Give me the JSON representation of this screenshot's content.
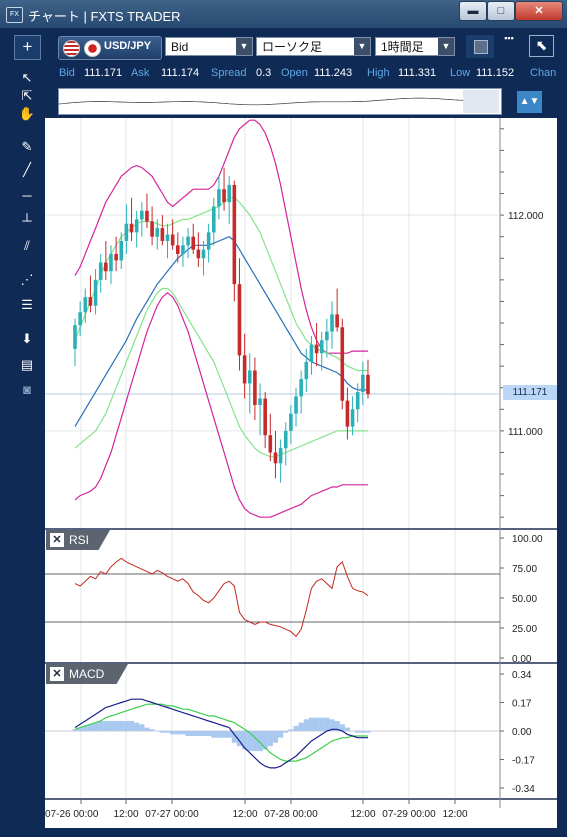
{
  "window": {
    "title": "チャート | FXTS TRADER",
    "icon_text": "FX",
    "minimize": "▬",
    "maximize": "□",
    "close": "✕"
  },
  "toolbar": {
    "add_label": "+",
    "symbol": "USD/JPY",
    "price_type": "Bid",
    "chart_type": "ローソク足",
    "timeframe": "1時間足",
    "scroll_icon": "▪▪▪",
    "expand_icon": "⬉"
  },
  "quote": {
    "bid_label": "Bid",
    "bid": "111.171",
    "ask_label": "Ask",
    "ask": "111.174",
    "spread_label": "Spread",
    "spread": "0.3",
    "open_label": "Open",
    "open": "111.243",
    "high_label": "High",
    "high": "111.331",
    "low_label": "Low",
    "low": "111.152",
    "change_label": "Chan"
  },
  "current_price_tag": "111.171",
  "colors": {
    "bollinger_outer": "#d4249b",
    "bollinger_inner": "#86e38a",
    "moving_average": "#2a6fb8",
    "candle_up": "#2bb0b8",
    "candle_down": "#c62a2a",
    "rsi_line": "#c0281f",
    "macd_line": "#1a1f8c",
    "signal_line": "#3ccf4c",
    "histogram": "#a9c9f0"
  },
  "rsi_panel": {
    "label": "RSI",
    "close_icon": "✕"
  },
  "macd_panel": {
    "label": "MACD",
    "close_icon": "✕"
  },
  "chart_data": [
    {
      "type": "candlestick",
      "series": [
        {
          "name": "",
          "values_desc": []
        }
      ],
      "y_ticks": [
        "112.000",
        "111.000"
      ],
      "ylim": [
        110.55,
        112.45
      ],
      "x_ticks": [
        "07-26 00:00",
        "12:00",
        "07-27 00:00",
        "12:00",
        "07-28 00:00",
        "12:00",
        "07-29 00:00",
        "12:00"
      ],
      "candles": [
        [
          111.38,
          111.52,
          111.3,
          111.49
        ],
        [
          111.49,
          111.6,
          111.44,
          111.55
        ],
        [
          111.55,
          111.66,
          111.5,
          111.62
        ],
        [
          111.62,
          111.72,
          111.55,
          111.58
        ],
        [
          111.58,
          111.75,
          111.54,
          111.7
        ],
        [
          111.7,
          111.82,
          111.64,
          111.78
        ],
        [
          111.78,
          111.88,
          111.7,
          111.74
        ],
        [
          111.74,
          111.86,
          111.68,
          111.82
        ],
        [
          111.82,
          111.9,
          111.74,
          111.79
        ],
        [
          111.79,
          111.92,
          111.75,
          111.88
        ],
        [
          111.88,
          112.05,
          111.82,
          111.96
        ],
        [
          111.96,
          112.08,
          111.88,
          111.92
        ],
        [
          111.92,
          112.02,
          111.85,
          111.98
        ],
        [
          111.98,
          112.06,
          111.9,
          112.02
        ],
        [
          112.02,
          112.1,
          111.94,
          111.97
        ],
        [
          111.97,
          112.04,
          111.86,
          111.9
        ],
        [
          111.9,
          111.98,
          111.84,
          111.94
        ],
        [
          111.94,
          112.0,
          111.86,
          111.88
        ],
        [
          111.88,
          111.96,
          111.8,
          111.91
        ],
        [
          111.91,
          111.98,
          111.84,
          111.86
        ],
        [
          111.86,
          111.92,
          111.78,
          111.82
        ],
        [
          111.82,
          111.9,
          111.76,
          111.86
        ],
        [
          111.86,
          111.94,
          111.8,
          111.9
        ],
        [
          111.9,
          111.96,
          111.82,
          111.84
        ],
        [
          111.84,
          111.92,
          111.76,
          111.8
        ],
        [
          111.8,
          111.88,
          111.72,
          111.84
        ],
        [
          111.84,
          111.96,
          111.78,
          111.92
        ],
        [
          111.92,
          112.08,
          111.86,
          112.04
        ],
        [
          112.04,
          112.18,
          111.98,
          112.12
        ],
        [
          112.12,
          112.22,
          112.02,
          112.06
        ],
        [
          112.06,
          112.18,
          111.96,
          112.14
        ],
        [
          112.14,
          112.16,
          111.6,
          111.68
        ],
        [
          111.68,
          111.8,
          111.28,
          111.35
        ],
        [
          111.35,
          111.45,
          111.15,
          111.22
        ],
        [
          111.22,
          111.36,
          111.08,
          111.28
        ],
        [
          111.28,
          111.34,
          111.05,
          111.12
        ],
        [
          111.12,
          111.22,
          110.98,
          111.15
        ],
        [
          111.15,
          111.18,
          110.92,
          110.98
        ],
        [
          110.98,
          111.08,
          110.86,
          110.9
        ],
        [
          110.9,
          111.0,
          110.78,
          110.85
        ],
        [
          110.85,
          110.96,
          110.76,
          110.92
        ],
        [
          110.92,
          111.04,
          110.84,
          111.0
        ],
        [
          111.0,
          111.12,
          110.94,
          111.08
        ],
        [
          111.08,
          111.2,
          111.02,
          111.16
        ],
        [
          111.16,
          111.28,
          111.08,
          111.24
        ],
        [
          111.24,
          111.38,
          111.18,
          111.32
        ],
        [
          111.32,
          111.44,
          111.26,
          111.4
        ],
        [
          111.4,
          111.5,
          111.3,
          111.36
        ],
        [
          111.36,
          111.46,
          111.28,
          111.42
        ],
        [
          111.42,
          111.52,
          111.34,
          111.46
        ],
        [
          111.46,
          111.6,
          111.38,
          111.54
        ],
        [
          111.54,
          111.66,
          111.46,
          111.48
        ],
        [
          111.48,
          111.52,
          111.1,
          111.14
        ],
        [
          111.14,
          111.2,
          110.96,
          111.02
        ],
        [
          111.02,
          111.16,
          110.98,
          111.1
        ],
        [
          111.1,
          111.22,
          111.04,
          111.18
        ],
        [
          111.18,
          111.32,
          111.12,
          111.26
        ],
        [
          111.26,
          111.33,
          111.15,
          111.17
        ]
      ],
      "ma": [
        111.02,
        111.06,
        111.1,
        111.14,
        111.18,
        111.22,
        111.26,
        111.3,
        111.34,
        111.38,
        111.42,
        111.47,
        111.52,
        111.56,
        111.6,
        111.64,
        111.68,
        111.71,
        111.74,
        111.77,
        111.8,
        111.82,
        111.84,
        111.86,
        111.86,
        111.86,
        111.86,
        111.87,
        111.88,
        111.89,
        111.9,
        111.88,
        111.84,
        111.8,
        111.76,
        111.72,
        111.68,
        111.64,
        111.6,
        111.56,
        111.52,
        111.48,
        111.44,
        111.4,
        111.36,
        111.34,
        111.32,
        111.31,
        111.3,
        111.29,
        111.28,
        111.27,
        111.25,
        111.22,
        111.2,
        111.19,
        111.19,
        111.19
      ],
      "bb_upper": [
        111.72,
        111.76,
        111.82,
        111.88,
        111.94,
        112.0,
        112.06,
        112.1,
        112.14,
        112.18,
        112.2,
        112.22,
        112.23,
        112.22,
        112.2,
        112.18,
        112.14,
        112.1,
        112.06,
        112.04,
        112.06,
        112.08,
        112.1,
        112.12,
        112.12,
        112.12,
        112.12,
        112.14,
        112.18,
        112.24,
        112.3,
        112.36,
        112.4,
        112.42,
        112.44,
        112.44,
        112.42,
        112.38,
        112.32,
        112.24,
        112.14,
        112.02,
        111.9,
        111.78,
        111.66,
        111.56,
        111.48,
        111.42,
        111.38,
        111.36,
        111.36,
        111.36,
        111.36,
        111.36,
        111.37,
        111.37,
        111.37,
        111.37
      ],
      "bb_inner_upper": [
        111.42,
        111.48,
        111.54,
        111.6,
        111.66,
        111.72,
        111.78,
        111.82,
        111.86,
        111.9,
        111.92,
        111.94,
        111.96,
        111.97,
        111.97,
        111.97,
        111.96,
        111.95,
        111.95,
        111.96,
        111.97,
        111.98,
        111.98,
        111.99,
        112.0,
        112.01,
        112.02,
        112.03,
        112.04,
        112.06,
        112.08,
        112.08,
        112.06,
        112.03,
        112.0,
        111.96,
        111.92,
        111.86,
        111.8,
        111.74,
        111.68,
        111.62,
        111.56,
        111.5,
        111.46,
        111.42,
        111.4,
        111.38,
        111.37,
        111.36,
        111.35,
        111.34,
        111.32,
        111.3,
        111.29,
        111.28,
        111.28,
        111.28
      ],
      "bb_inner_lower": [
        110.92,
        110.94,
        110.96,
        110.98,
        111.0,
        111.04,
        111.08,
        111.14,
        111.2,
        111.26,
        111.32,
        111.38,
        111.44,
        111.5,
        111.56,
        111.6,
        111.64,
        111.66,
        111.66,
        111.64,
        111.6,
        111.56,
        111.52,
        111.48,
        111.44,
        111.4,
        111.36,
        111.32,
        111.26,
        111.2,
        111.14,
        111.08,
        111.02,
        110.98,
        110.95,
        110.92,
        110.9,
        110.89,
        110.88,
        110.88,
        110.89,
        110.9,
        110.91,
        110.92,
        110.93,
        110.94,
        110.95,
        110.96,
        110.97,
        110.98,
        110.99,
        111.0,
        111.0,
        111.0,
        111.0,
        111.0,
        111.0,
        111.0
      ],
      "bb_lower": [
        110.68,
        110.7,
        110.71,
        110.72,
        110.74,
        110.78,
        110.84,
        110.9,
        110.98,
        111.06,
        111.14,
        111.22,
        111.3,
        111.38,
        111.46,
        111.52,
        111.58,
        111.62,
        111.64,
        111.62,
        111.58,
        111.52,
        111.46,
        111.38,
        111.3,
        111.22,
        111.14,
        111.06,
        110.98,
        110.9,
        110.82,
        110.74,
        110.68,
        110.64,
        110.62,
        110.61,
        110.6,
        110.6,
        110.6,
        110.61,
        110.62,
        110.63,
        110.64,
        110.65,
        110.66,
        110.68,
        110.7,
        110.71,
        110.72,
        110.73,
        110.74,
        110.74,
        110.75,
        110.75,
        110.75,
        110.75,
        110.75,
        110.75
      ]
    },
    {
      "type": "line",
      "title": "RSI",
      "y_ticks": [
        "100.00",
        "75.00",
        "50.00",
        "25.00",
        "0.00"
      ],
      "ylim": [
        0,
        100
      ],
      "levels": [
        70,
        30
      ],
      "values": [
        62,
        60,
        64,
        68,
        66,
        72,
        70,
        76,
        80,
        83,
        80,
        78,
        76,
        74,
        72,
        70,
        73,
        71,
        68,
        66,
        64,
        66,
        62,
        55,
        52,
        48,
        46,
        50,
        56,
        62,
        64,
        60,
        38,
        32,
        30,
        28,
        30,
        30,
        28,
        27,
        26,
        24,
        22,
        18,
        24,
        40,
        58,
        64,
        66,
        62,
        58,
        76,
        80,
        68,
        58,
        56,
        55,
        52
      ]
    },
    {
      "type": "line",
      "title": "MACD",
      "y_ticks": [
        "0.34",
        "0.17",
        "0.00",
        "-0.17",
        "-0.34"
      ],
      "ylim": [
        -0.4,
        0.4
      ],
      "macd": [
        0.02,
        0.04,
        0.06,
        0.08,
        0.1,
        0.12,
        0.14,
        0.15,
        0.16,
        0.17,
        0.18,
        0.19,
        0.19,
        0.19,
        0.18,
        0.17,
        0.16,
        0.15,
        0.14,
        0.13,
        0.12,
        0.11,
        0.1,
        0.09,
        0.08,
        0.07,
        0.06,
        0.05,
        0.04,
        0.03,
        0.02,
        -0.02,
        -0.06,
        -0.1,
        -0.13,
        -0.16,
        -0.19,
        -0.21,
        -0.22,
        -0.22,
        -0.21,
        -0.19,
        -0.17,
        -0.15,
        -0.12,
        -0.09,
        -0.06,
        -0.04,
        -0.02,
        0.0,
        0.01,
        0.01,
        0.0,
        -0.02,
        -0.03,
        -0.04,
        -0.04,
        -0.04
      ],
      "signal": [
        0.01,
        0.02,
        0.03,
        0.04,
        0.05,
        0.06,
        0.08,
        0.09,
        0.1,
        0.11,
        0.12,
        0.13,
        0.14,
        0.15,
        0.16,
        0.16,
        0.16,
        0.16,
        0.15,
        0.15,
        0.14,
        0.13,
        0.13,
        0.12,
        0.11,
        0.1,
        0.09,
        0.09,
        0.08,
        0.07,
        0.06,
        0.05,
        0.03,
        0.01,
        -0.01,
        -0.04,
        -0.07,
        -0.1,
        -0.13,
        -0.15,
        -0.17,
        -0.18,
        -0.18,
        -0.18,
        -0.17,
        -0.16,
        -0.14,
        -0.12,
        -0.1,
        -0.08,
        -0.06,
        -0.05,
        -0.04,
        -0.04,
        -0.03,
        -0.03,
        -0.03,
        -0.03
      ],
      "histogram": [
        0.01,
        0.02,
        0.03,
        0.04,
        0.05,
        0.06,
        0.06,
        0.06,
        0.06,
        0.06,
        0.06,
        0.06,
        0.05,
        0.04,
        0.02,
        0.01,
        0.0,
        -0.01,
        -0.01,
        -0.02,
        -0.02,
        -0.02,
        -0.03,
        -0.03,
        -0.03,
        -0.03,
        -0.03,
        -0.04,
        -0.04,
        -0.04,
        -0.04,
        -0.07,
        -0.09,
        -0.11,
        -0.12,
        -0.12,
        -0.12,
        -0.11,
        -0.09,
        -0.07,
        -0.04,
        -0.01,
        0.01,
        0.03,
        0.05,
        0.07,
        0.08,
        0.08,
        0.08,
        0.08,
        0.07,
        0.06,
        0.04,
        0.02,
        0.0,
        -0.01,
        -0.01,
        -0.01
      ]
    }
  ]
}
